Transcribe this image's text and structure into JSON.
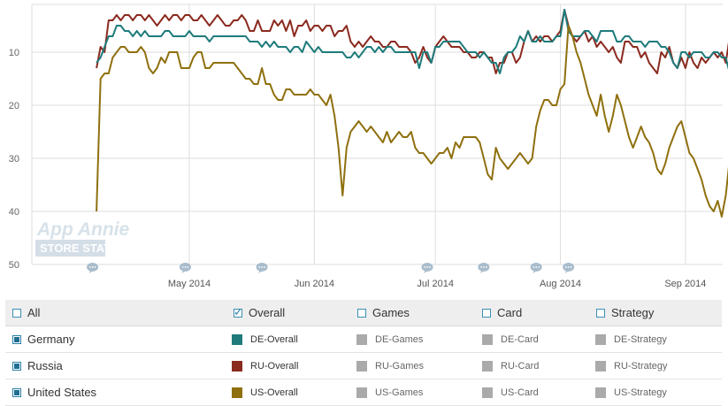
{
  "chart_data": {
    "type": "line",
    "y_axis": {
      "ticks": [
        "",
        "10",
        "20",
        "30",
        "40",
        "50"
      ],
      "inverted": true,
      "range": [
        1,
        50
      ]
    },
    "x_axis": {
      "ticks": [
        {
          "label": "May 2014",
          "day": 25
        },
        {
          "label": "Jun 2014",
          "day": 56
        },
        {
          "label": "Jul 2014",
          "day": 86
        },
        {
          "label": "Aug 2014",
          "day": 117
        },
        {
          "label": "Sep 2014",
          "day": 148
        }
      ]
    },
    "grid": true,
    "watermark": {
      "line1": "App Annie",
      "line2": "STORE STATS"
    },
    "annotation_days": [
      1,
      24,
      43,
      84,
      98,
      111,
      119
    ],
    "series": [
      {
        "name": "RU-Overall",
        "color": "#8b2a1f",
        "start_day": 2,
        "values": [
          13,
          9,
          10,
          4,
          4,
          3,
          4,
          3,
          3,
          4,
          3,
          3,
          4,
          3,
          4,
          5,
          4,
          3,
          4,
          3,
          3,
          4,
          3,
          3,
          4,
          4,
          3,
          4,
          5,
          4,
          3,
          4,
          5,
          5,
          4,
          4,
          3,
          4,
          6,
          6,
          4,
          6,
          6,
          6,
          4,
          5,
          4,
          6,
          4,
          7,
          5,
          5,
          4,
          6,
          5,
          5,
          6,
          5,
          5,
          7,
          6,
          6,
          5,
          8,
          9,
          8,
          9,
          8,
          7,
          8,
          8,
          9,
          9,
          8,
          8,
          9,
          9,
          9,
          10,
          12,
          11,
          9,
          11,
          12,
          9,
          8,
          7,
          8,
          9,
          9,
          9,
          10,
          10,
          11,
          11,
          10,
          10,
          11,
          11,
          14,
          12,
          12,
          10,
          10,
          12,
          11,
          8,
          6,
          8,
          7,
          8,
          7,
          7,
          8,
          7,
          6,
          2,
          5,
          7,
          8,
          7,
          6,
          8,
          7,
          9,
          8,
          9,
          10,
          9,
          11,
          12,
          8,
          8,
          9,
          9,
          11,
          10,
          12,
          13,
          14,
          10,
          11,
          9,
          12,
          13,
          11,
          13,
          10,
          12,
          13,
          11,
          12,
          11,
          10,
          11,
          10,
          12,
          7
        ]
      },
      {
        "name": "DE-Overall",
        "color": "#1f7b7b",
        "start_day": 2,
        "values": [
          12,
          11,
          9,
          7,
          7,
          5,
          5,
          6,
          6,
          7,
          6,
          7,
          6,
          7,
          7,
          7,
          7,
          6,
          6,
          7,
          7,
          7,
          7,
          6,
          7,
          7,
          7,
          7,
          8,
          7,
          7,
          7,
          7,
          7,
          7,
          7,
          7,
          7,
          8,
          8,
          8,
          9,
          8,
          9,
          8,
          9,
          9,
          9,
          10,
          9,
          9,
          10,
          8,
          9,
          10,
          9,
          10,
          10,
          10,
          10,
          10,
          10,
          11,
          11,
          10,
          11,
          10,
          9,
          9,
          10,
          9,
          10,
          9,
          9,
          10,
          10,
          10,
          10,
          10,
          10,
          13,
          10,
          10,
          12,
          9,
          9,
          8,
          8,
          8,
          8,
          8,
          9,
          10,
          10,
          10,
          11,
          10,
          11,
          12,
          12,
          14,
          11,
          10,
          10,
          9,
          7,
          8,
          6,
          8,
          8,
          7,
          8,
          8,
          8,
          7,
          7,
          2,
          6,
          7,
          7,
          7,
          6,
          6,
          7,
          8,
          6,
          6,
          6,
          6,
          8,
          8,
          7,
          7,
          8,
          8,
          8,
          9,
          8,
          8,
          8,
          9,
          9,
          10,
          12,
          13,
          10,
          10,
          11,
          10,
          10,
          10,
          11,
          11,
          10,
          10,
          11,
          11,
          14
        ]
      },
      {
        "name": "US-Overall",
        "color": "#8f700f",
        "start_day": 2,
        "values": [
          40,
          15,
          14,
          14,
          11,
          10,
          9,
          9,
          10,
          10,
          10,
          9,
          10,
          13,
          14,
          13,
          11,
          12,
          10,
          10,
          10,
          13,
          13,
          13,
          11,
          10,
          10,
          13,
          13,
          12,
          12,
          12,
          12,
          12,
          12,
          13,
          14,
          15,
          15,
          16,
          16,
          13,
          16,
          16,
          18,
          19,
          19,
          17,
          17,
          18,
          18,
          18,
          18,
          17,
          18,
          18,
          19,
          20,
          18,
          22,
          28,
          37,
          28,
          25,
          24,
          23,
          24,
          25,
          24,
          25,
          26,
          27,
          25,
          27,
          26,
          25,
          26,
          26,
          25,
          28,
          29,
          29,
          30,
          31,
          30,
          29,
          29,
          28,
          30,
          27,
          28,
          26,
          26,
          26,
          26,
          27,
          30,
          33,
          34,
          28,
          30,
          31,
          32,
          31,
          30,
          29,
          30,
          31,
          30,
          24,
          21,
          19,
          19,
          20,
          20,
          17,
          16,
          5,
          7,
          10,
          12,
          15,
          18,
          20,
          22,
          18,
          22,
          25,
          22,
          18,
          20,
          23,
          26,
          28,
          26,
          24,
          26,
          27,
          29,
          32,
          33,
          31,
          28,
          26,
          24,
          23,
          26,
          29,
          30,
          32,
          34,
          37,
          39,
          40,
          38,
          41,
          37,
          30
        ]
      }
    ]
  },
  "legend": {
    "header": [
      {
        "label": "All",
        "checked": false
      },
      {
        "label": "Overall",
        "checked": true
      },
      {
        "label": "Games",
        "checked": false
      },
      {
        "label": "Card",
        "checked": false
      },
      {
        "label": "Strategy",
        "checked": false
      }
    ],
    "rows": [
      {
        "country": "Germany",
        "cells": [
          {
            "label": "DE-Overall",
            "color": "#1f7b7b",
            "active": true
          },
          {
            "label": "DE-Games",
            "color": "#aaaaaa",
            "active": false
          },
          {
            "label": "DE-Card",
            "color": "#aaaaaa",
            "active": false
          },
          {
            "label": "DE-Strategy",
            "color": "#aaaaaa",
            "active": false
          }
        ]
      },
      {
        "country": "Russia",
        "cells": [
          {
            "label": "RU-Overall",
            "color": "#8b2a1f",
            "active": true
          },
          {
            "label": "RU-Games",
            "color": "#aaaaaa",
            "active": false
          },
          {
            "label": "RU-Card",
            "color": "#aaaaaa",
            "active": false
          },
          {
            "label": "RU-Strategy",
            "color": "#aaaaaa",
            "active": false
          }
        ]
      },
      {
        "country": "United States",
        "cells": [
          {
            "label": "US-Overall",
            "color": "#8f700f",
            "active": true
          },
          {
            "label": "US-Games",
            "color": "#aaaaaa",
            "active": false
          },
          {
            "label": "US-Card",
            "color": "#aaaaaa",
            "active": false
          },
          {
            "label": "US-Strategy",
            "color": "#aaaaaa",
            "active": false
          }
        ]
      }
    ]
  }
}
